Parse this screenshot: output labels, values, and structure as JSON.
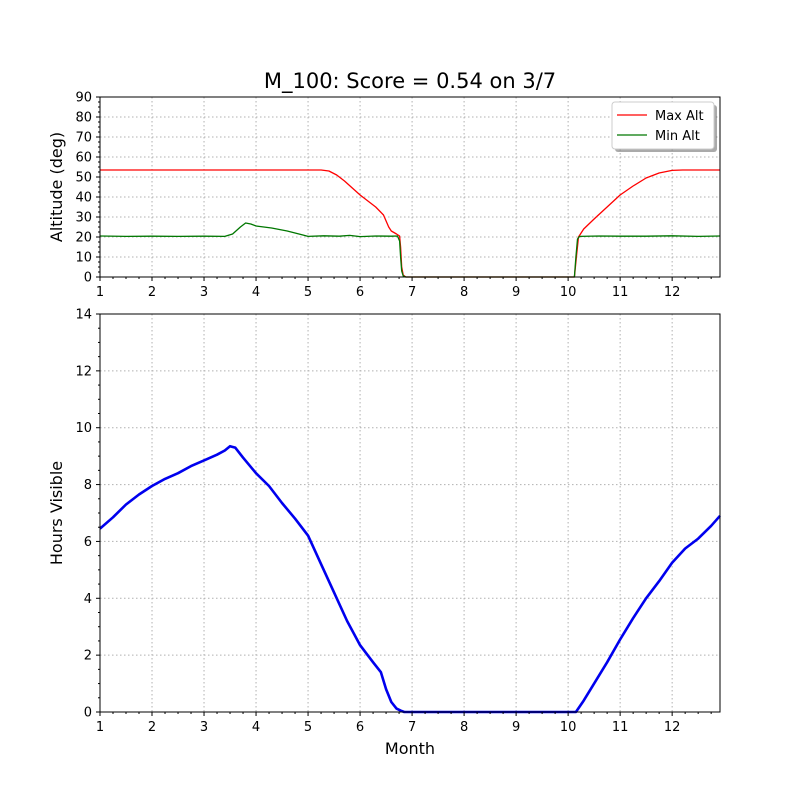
{
  "title": "M_100: Score = 0.54 on 3/7",
  "chart_data": [
    {
      "type": "line",
      "ylabel": "Altitude (deg)",
      "xlabel": "",
      "xlim": [
        1,
        12.92
      ],
      "ylim": [
        0,
        90
      ],
      "xticks": [
        1,
        2,
        3,
        4,
        5,
        6,
        7,
        8,
        9,
        10,
        11,
        12
      ],
      "yticks": [
        0,
        10,
        20,
        30,
        40,
        50,
        60,
        70,
        80,
        90
      ],
      "grid": true,
      "legend_position": "top-right",
      "series": [
        {
          "name": "Max Alt",
          "color": "#ff0000",
          "points": [
            [
              1,
              53.5
            ],
            [
              5.25,
              53.5
            ],
            [
              5.4,
              53
            ],
            [
              5.55,
              51
            ],
            [
              5.7,
              48
            ],
            [
              5.85,
              44.5
            ],
            [
              6,
              41
            ],
            [
              6.15,
              38
            ],
            [
              6.3,
              35
            ],
            [
              6.45,
              31
            ],
            [
              6.55,
              25
            ],
            [
              6.6,
              23
            ],
            [
              6.7,
              21.5
            ],
            [
              6.76,
              20.5
            ],
            [
              6.78,
              15
            ],
            [
              6.8,
              5
            ],
            [
              6.83,
              1
            ],
            [
              6.88,
              0
            ],
            [
              10.12,
              0
            ],
            [
              10.16,
              10
            ],
            [
              10.2,
              20
            ],
            [
              10.3,
              24
            ],
            [
              10.5,
              29
            ],
            [
              10.75,
              35
            ],
            [
              11,
              41
            ],
            [
              11.25,
              45.5
            ],
            [
              11.5,
              49.5
            ],
            [
              11.75,
              52
            ],
            [
              12,
              53.3
            ],
            [
              12.2,
              53.5
            ],
            [
              12.92,
              53.5
            ]
          ]
        },
        {
          "name": "Min Alt",
          "color": "#007700",
          "points": [
            [
              1,
              20.5
            ],
            [
              1.5,
              20.3
            ],
            [
              2,
              20.4
            ],
            [
              2.5,
              20.3
            ],
            [
              3,
              20.4
            ],
            [
              3.4,
              20.3
            ],
            [
              3.55,
              21.5
            ],
            [
              3.7,
              25
            ],
            [
              3.8,
              27
            ],
            [
              3.9,
              26.5
            ],
            [
              4,
              25.5
            ],
            [
              4.3,
              24.5
            ],
            [
              4.6,
              23
            ],
            [
              4.9,
              21
            ],
            [
              5,
              20.3
            ],
            [
              5.3,
              20.6
            ],
            [
              5.6,
              20.4
            ],
            [
              5.8,
              20.8
            ],
            [
              6,
              20.2
            ],
            [
              6.3,
              20.5
            ],
            [
              6.6,
              20.4
            ],
            [
              6.72,
              20.5
            ],
            [
              6.76,
              18
            ],
            [
              6.78,
              10
            ],
            [
              6.8,
              3
            ],
            [
              6.83,
              0.5
            ],
            [
              6.88,
              0
            ],
            [
              10.12,
              0
            ],
            [
              10.15,
              10
            ],
            [
              10.18,
              19
            ],
            [
              10.22,
              20.3
            ],
            [
              10.6,
              20.5
            ],
            [
              11,
              20.4
            ],
            [
              11.5,
              20.4
            ],
            [
              12,
              20.6
            ],
            [
              12.5,
              20.3
            ],
            [
              12.92,
              20.5
            ]
          ]
        }
      ]
    },
    {
      "type": "line",
      "ylabel": "Hours Visible",
      "xlabel": "Month",
      "xlim": [
        1,
        12.92
      ],
      "ylim": [
        0,
        14
      ],
      "xticks": [
        1,
        2,
        3,
        4,
        5,
        6,
        7,
        8,
        9,
        10,
        11,
        12
      ],
      "yticks": [
        0,
        2,
        4,
        6,
        8,
        10,
        12,
        14
      ],
      "grid": true,
      "series": [
        {
          "color": "#0000ee",
          "points": [
            [
              1,
              6.45
            ],
            [
              1.25,
              6.85
            ],
            [
              1.5,
              7.3
            ],
            [
              1.75,
              7.65
            ],
            [
              2,
              7.95
            ],
            [
              2.25,
              8.2
            ],
            [
              2.5,
              8.4
            ],
            [
              2.75,
              8.65
            ],
            [
              3,
              8.85
            ],
            [
              3.25,
              9.05
            ],
            [
              3.4,
              9.2
            ],
            [
              3.5,
              9.35
            ],
            [
              3.6,
              9.3
            ],
            [
              3.75,
              8.95
            ],
            [
              4,
              8.4
            ],
            [
              4.25,
              7.95
            ],
            [
              4.5,
              7.35
            ],
            [
              4.75,
              6.8
            ],
            [
              5,
              6.2
            ],
            [
              5.25,
              5.2
            ],
            [
              5.5,
              4.2
            ],
            [
              5.75,
              3.2
            ],
            [
              6,
              2.35
            ],
            [
              6.25,
              1.75
            ],
            [
              6.4,
              1.4
            ],
            [
              6.5,
              0.8
            ],
            [
              6.6,
              0.35
            ],
            [
              6.7,
              0.12
            ],
            [
              6.78,
              0.05
            ],
            [
              6.85,
              0
            ],
            [
              10.15,
              0
            ],
            [
              10.3,
              0.4
            ],
            [
              10.5,
              1
            ],
            [
              10.75,
              1.75
            ],
            [
              11,
              2.55
            ],
            [
              11.25,
              3.3
            ],
            [
              11.5,
              4
            ],
            [
              11.75,
              4.6
            ],
            [
              12,
              5.25
            ],
            [
              12.25,
              5.75
            ],
            [
              12.5,
              6.1
            ],
            [
              12.75,
              6.55
            ],
            [
              12.92,
              6.9
            ]
          ]
        }
      ]
    }
  ]
}
